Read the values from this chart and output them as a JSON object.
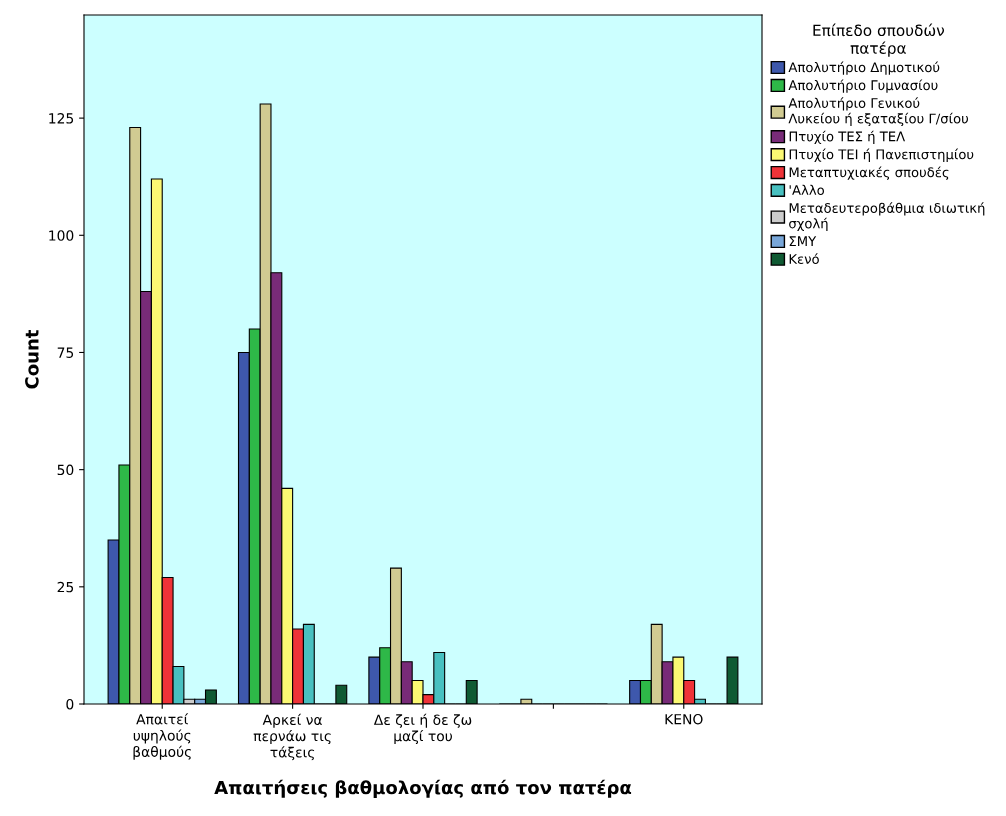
{
  "chart_data": {
    "type": "bar",
    "xlabel": "Απαιτήσεις βαθμολογίας από τον πατέρα",
    "ylabel": "Count",
    "legend_title": "Επίπεδο σπουδών\nπατέρα",
    "categories": [
      "Απαιτεί\nυψηλούς\nβαθμούς",
      "Αρκεί να\nπερνάω τις\nτάξεις",
      "Δε ζει ή δε ζω\nμαζί του",
      null,
      "ΚΕΝΟ"
    ],
    "series": [
      {
        "name": "Απολυτήριο Δημοτικού",
        "color": "#3e58ac",
        "values": [
          35,
          75,
          10,
          0,
          5
        ]
      },
      {
        "name": "Απολυτήριο Γυμνασίου",
        "color": "#2eb848",
        "values": [
          51,
          80,
          12,
          0,
          5
        ]
      },
      {
        "name": "Απολυτήριο Γενικού\nΛυκείου ή εξαταξίου Γ/σίου",
        "color": "#d1cb92",
        "values": [
          123,
          128,
          29,
          1,
          17
        ]
      },
      {
        "name": "Πτυχίο ΤΕΣ ή ΤΕΛ",
        "color": "#782b78",
        "values": [
          88,
          92,
          9,
          0,
          9
        ]
      },
      {
        "name": "Πτυχίο ΤΕΙ ή Πανεπιστημίου",
        "color": "#fbf873",
        "values": [
          112,
          46,
          5,
          0,
          10
        ]
      },
      {
        "name": "Μεταπτυχιακές σπουδές",
        "color": "#ef3338",
        "values": [
          27,
          16,
          2,
          0,
          5
        ]
      },
      {
        "name": "'Αλλο",
        "color": "#48c0c0",
        "values": [
          8,
          17,
          11,
          0,
          1
        ]
      },
      {
        "name": "Μεταδευτεροβάθμια ιδιωτική\nσχολή",
        "color": "#cccccc",
        "values": [
          1,
          0,
          0,
          0,
          0
        ]
      },
      {
        "name": "ΣΜΥ",
        "color": "#79a7d9",
        "values": [
          1,
          0,
          0,
          0,
          0
        ]
      },
      {
        "name": "Κενό",
        "color": "#0f5a33",
        "values": [
          3,
          4,
          5,
          0,
          10
        ]
      }
    ],
    "ylim": [
      0,
      147
    ],
    "yticks": [
      0,
      25,
      50,
      75,
      100,
      125
    ],
    "grid": false,
    "legend": "top right"
  }
}
